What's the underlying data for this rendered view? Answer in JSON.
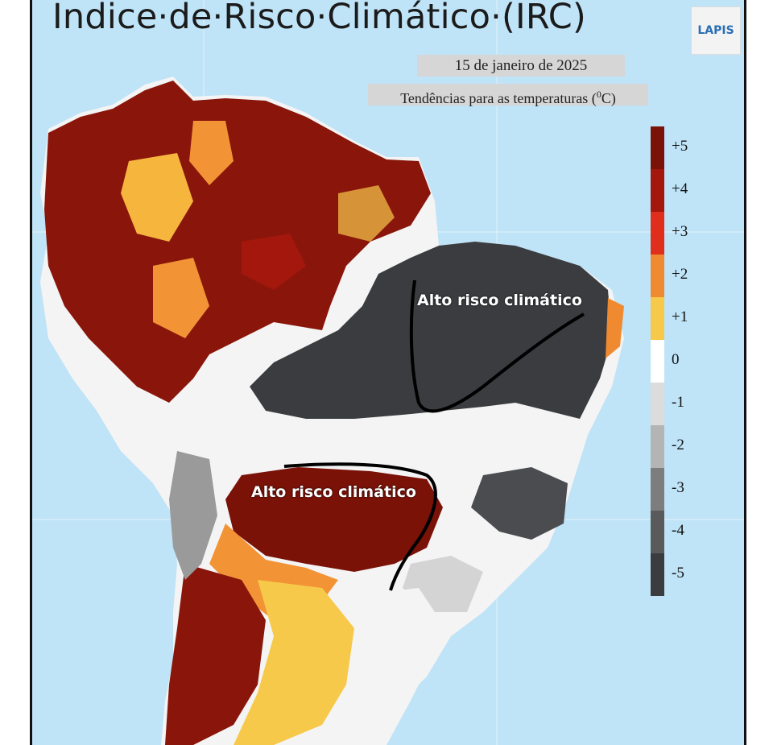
{
  "title": "Indice·de·Risco·Climático·(IRC)",
  "logo_text": "LAPIS",
  "date": "15 de janeiro de 2025",
  "subtitle_label": "Tendências para as temperaturas (",
  "subtitle_unit_sup": "0",
  "subtitle_unit": "C)",
  "legend": {
    "items": [
      {
        "label": "+5",
        "color": "#7a1208"
      },
      {
        "label": "+4",
        "color": "#a3170c"
      },
      {
        "label": "+3",
        "color": "#df2e1b"
      },
      {
        "label": "+2",
        "color": "#f08a31"
      },
      {
        "label": "+1",
        "color": "#f7c94a"
      },
      {
        "label": "0",
        "color": "#ffffff"
      },
      {
        "label": "-1",
        "color": "#dcdcdc"
      },
      {
        "label": "-2",
        "color": "#b4b4b4"
      },
      {
        "label": "-3",
        "color": "#7d7d7d"
      },
      {
        "label": "-4",
        "color": "#5a5a5a"
      },
      {
        "label": "-5",
        "color": "#3a3c3f"
      }
    ]
  },
  "annotations": [
    {
      "id": "northeast",
      "text": "Alto risco climático"
    },
    {
      "id": "central",
      "text": "Alto risco climático"
    }
  ],
  "colors": {
    "ocean": "#bfe3f7",
    "hot": "#7a1208",
    "dark_gray": "#3a3c3f"
  }
}
